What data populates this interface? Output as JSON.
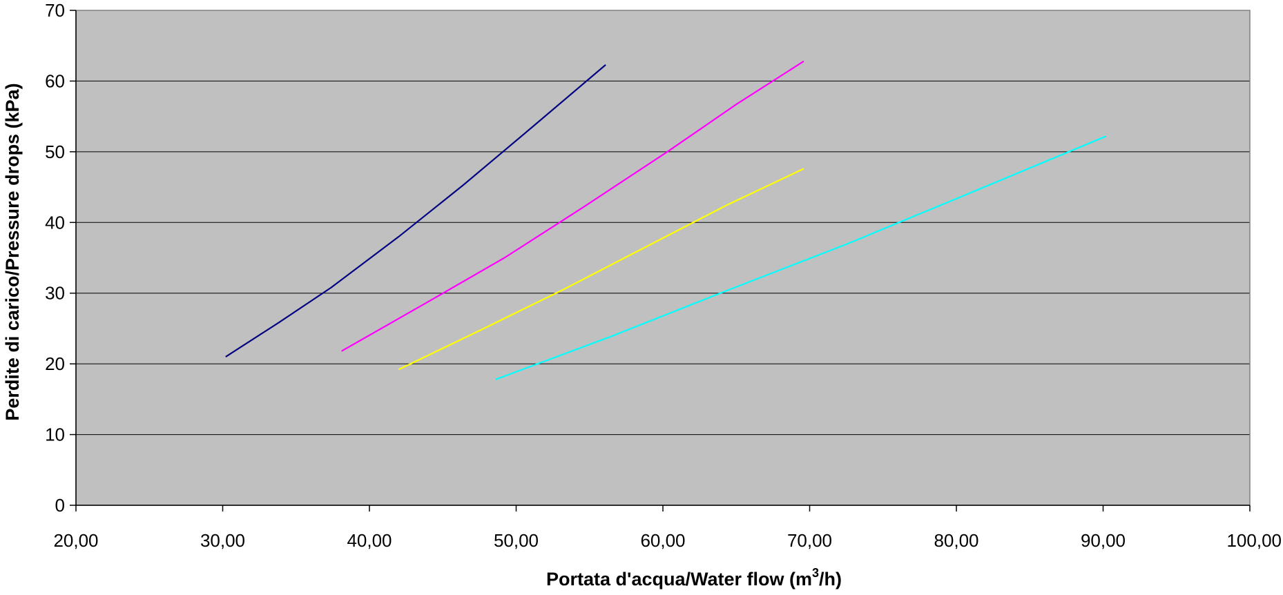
{
  "chart_data": {
    "type": "line",
    "title": "",
    "xlabel": "Portata d'acqua/Water flow (m",
    "xlabel_sup": "3",
    "xlabel_tail": "/h)",
    "ylabel": "Perdite di carico/Pressure drops (kPa)",
    "xlim": [
      20,
      100
    ],
    "ylim": [
      0,
      70
    ],
    "x_ticks": [
      20,
      30,
      40,
      50,
      60,
      70,
      80,
      90,
      100
    ],
    "x_tick_labels": [
      "20,00",
      "30,00",
      "40,00",
      "50,00",
      "60,00",
      "70,00",
      "80,00",
      "90,00",
      "100,00"
    ],
    "y_ticks": [
      0,
      10,
      20,
      30,
      40,
      50,
      60,
      70
    ],
    "y_tick_labels": [
      "0",
      "10",
      "20",
      "30",
      "40",
      "50",
      "60",
      "70"
    ],
    "grid": true,
    "legend": "none",
    "plot_background": "#c0c0c0",
    "series": [
      {
        "color": "#000080",
        "x": [
          30.2,
          33.8,
          37.4,
          42.0,
          46.4,
          51.1,
          56.1
        ],
        "y": [
          21.0,
          25.8,
          30.8,
          38.0,
          45.3,
          53.5,
          62.3
        ]
      },
      {
        "color": "#ff00ff",
        "x": [
          38.1,
          43.6,
          49.2,
          54.6,
          60.3,
          65.0,
          69.6
        ],
        "y": [
          21.8,
          28.3,
          35.0,
          42.2,
          50.0,
          56.7,
          62.8
        ]
      },
      {
        "color": "#ffff00",
        "x": [
          42.0,
          47.6,
          53.3,
          58.8,
          64.4,
          69.6
        ],
        "y": [
          19.2,
          24.8,
          30.6,
          36.5,
          42.5,
          47.6
        ]
      },
      {
        "color": "#00ffff",
        "x": [
          48.6,
          56.5,
          64.4,
          72.6,
          81.2,
          90.2
        ],
        "y": [
          17.8,
          23.9,
          30.4,
          37.0,
          44.4,
          52.2
        ]
      }
    ]
  }
}
